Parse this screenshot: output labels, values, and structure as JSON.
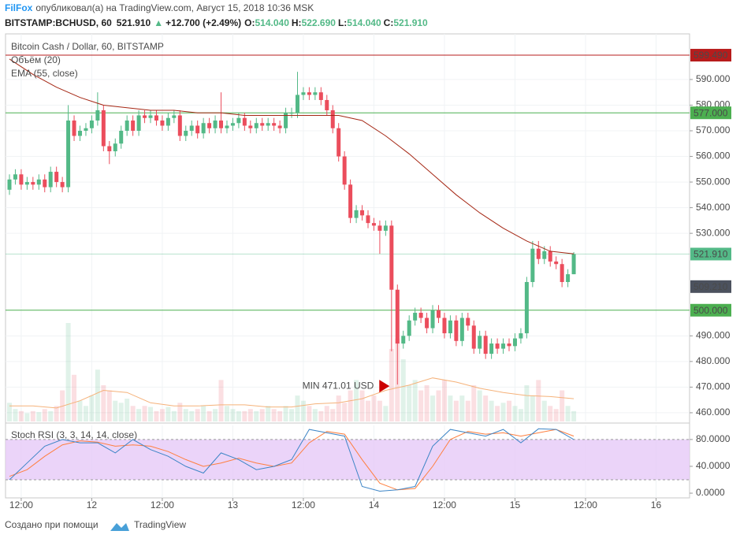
{
  "header": {
    "publisher": "FilFox",
    "published": "опубликовал(а) на TradingView.com, Август 15, 2018 10:36 MSK",
    "symbol": "BITSTAMP:BCHUSD, 60",
    "last": "521.910",
    "arrow": "▲",
    "change": "+12.700 (+2.49%)",
    "ohlc": [
      {
        "label": "O:",
        "value": "514.040"
      },
      {
        "label": "H:",
        "value": "522.690"
      },
      {
        "label": "L:",
        "value": "514.040"
      },
      {
        "label": "C:",
        "value": "521.910"
      }
    ]
  },
  "footer": {
    "text": "Создано при помощи",
    "brand": "TradingView"
  },
  "chart_data": {
    "type": "candlestick",
    "title": "Bitcoin Cash / Dollar, 60, BITSTAMP",
    "up_color": "#53b987",
    "down_color": "#eb4d5c",
    "open": [
      547,
      551,
      553,
      549,
      550,
      549,
      551,
      548,
      554,
      550,
      548,
      574,
      568,
      570,
      571,
      574,
      578,
      564,
      562,
      565,
      570,
      574,
      570,
      576,
      575,
      576,
      574,
      572,
      575,
      576,
      568,
      570,
      572,
      569,
      573,
      571,
      574,
      571,
      572,
      573,
      575,
      572,
      571,
      573,
      572,
      573,
      572,
      571,
      577,
      577,
      584,
      585,
      584,
      585,
      582,
      578,
      571,
      560,
      549,
      536,
      539,
      537,
      534,
      533,
      531,
      533,
      508,
      487,
      490,
      496,
      499,
      497,
      493,
      500,
      497,
      491,
      496,
      488,
      497,
      494,
      485,
      490,
      483,
      487,
      485,
      487,
      486,
      489,
      491,
      511,
      524,
      520,
      523,
      519,
      518,
      511,
      514.04
    ],
    "high": [
      553,
      555,
      555,
      552,
      552,
      553,
      553,
      556,
      556,
      552,
      580,
      576,
      572,
      573,
      576,
      585,
      580,
      566,
      567,
      572,
      576,
      576,
      578,
      578,
      578,
      578,
      576,
      577,
      578,
      578,
      572,
      574,
      574,
      575,
      575,
      576,
      585,
      574,
      575,
      577,
      577,
      574,
      575,
      575,
      575,
      575,
      574,
      579,
      579,
      593,
      587,
      587,
      587,
      587,
      584,
      580,
      573,
      562,
      551,
      541,
      541,
      539,
      536,
      535,
      535,
      535,
      510,
      492,
      498,
      501,
      501,
      499,
      502,
      502,
      499,
      498,
      498,
      499,
      499,
      496,
      492,
      492,
      489,
      489,
      489,
      489,
      491,
      493,
      513,
      527,
      527,
      525,
      525,
      521,
      520,
      516,
      522.69
    ],
    "low": [
      545,
      549,
      547,
      547,
      547,
      547,
      546,
      546,
      548,
      546,
      546,
      566,
      566,
      568,
      569,
      572,
      562,
      557,
      560,
      563,
      568,
      568,
      568,
      573,
      573,
      572,
      570,
      570,
      573,
      566,
      566,
      568,
      567,
      567,
      569,
      569,
      569,
      569,
      570,
      571,
      570,
      569,
      569,
      570,
      570,
      570,
      569,
      569,
      575,
      575,
      582,
      582,
      582,
      580,
      576,
      569,
      558,
      547,
      534,
      534,
      535,
      532,
      531,
      522,
      529,
      484,
      471.01,
      485,
      488,
      494,
      495,
      491,
      491,
      495,
      489,
      489,
      486,
      486,
      492,
      483,
      483,
      481,
      481,
      483,
      483,
      484,
      484,
      487,
      489,
      509,
      518,
      518,
      517,
      516,
      509,
      509,
      514.04
    ],
    "close": [
      551,
      553,
      549,
      550,
      549,
      551,
      548,
      554,
      550,
      548,
      574,
      568,
      570,
      571,
      574,
      578,
      564,
      562,
      565,
      570,
      574,
      570,
      576,
      575,
      576,
      574,
      572,
      575,
      576,
      568,
      570,
      572,
      569,
      573,
      571,
      574,
      571,
      572,
      573,
      575,
      572,
      571,
      573,
      572,
      573,
      572,
      571,
      577,
      577,
      584,
      585,
      584,
      585,
      582,
      578,
      571,
      560,
      549,
      536,
      539,
      537,
      534,
      533,
      531,
      533,
      508,
      487,
      490,
      496,
      499,
      497,
      493,
      500,
      497,
      491,
      496,
      488,
      497,
      494,
      485,
      490,
      483,
      487,
      485,
      487,
      486,
      489,
      491,
      511,
      524,
      520,
      523,
      519,
      518,
      511,
      514.04,
      521.91
    ],
    "xlim": [
      -0.67,
      115.7
    ],
    "xticks": [
      {
        "value": 2,
        "label": "12:00"
      },
      {
        "value": 14,
        "label": "12"
      },
      {
        "value": 26,
        "label": "12:00"
      },
      {
        "value": 38,
        "label": "13"
      },
      {
        "value": 50,
        "label": "12:00"
      },
      {
        "value": 62,
        "label": "14"
      },
      {
        "value": 74,
        "label": "12:00"
      },
      {
        "value": 86,
        "label": "15"
      },
      {
        "value": 98,
        "label": "12:00"
      },
      {
        "value": 110,
        "label": "16"
      }
    ],
    "ylim": [
      456.6,
      607.8
    ],
    "yticks": [
      {
        "value": 460,
        "label": "460.000"
      },
      {
        "value": 470,
        "label": "470.000"
      },
      {
        "value": 480,
        "label": "480.000"
      },
      {
        "value": 490,
        "label": "490.000"
      },
      {
        "value": 530,
        "label": "530.000"
      },
      {
        "value": 540,
        "label": "540.000"
      },
      {
        "value": 550,
        "label": "550.000"
      },
      {
        "value": 560,
        "label": "560.000"
      },
      {
        "value": 570,
        "label": "570.000"
      },
      {
        "value": 580,
        "label": "580.000"
      },
      {
        "value": 590,
        "label": "590.000"
      }
    ],
    "grid": true,
    "levels": [
      {
        "value": 599.49,
        "label": "599.490",
        "color": "#b71c1c",
        "line": true
      },
      {
        "value": 577,
        "label": "577.000",
        "color": "#4caf50",
        "line": true
      },
      {
        "value": 521.91,
        "label": "521.910",
        "color": "#53b987",
        "line": true
      },
      {
        "value": 509.21,
        "label": "509.210",
        "color": "#4c525e",
        "line": false
      },
      {
        "value": 500,
        "label": "500.000",
        "color": "#4caf50",
        "line": true
      }
    ],
    "annotation": "MIN 471.01 USD",
    "volume": {
      "name": "Объём (20)",
      "values": [
        18,
        12,
        10,
        8,
        10,
        9,
        12,
        10,
        15,
        30,
        95,
        45,
        20,
        15,
        25,
        50,
        35,
        30,
        20,
        18,
        22,
        15,
        12,
        15,
        14,
        10,
        12,
        14,
        10,
        18,
        12,
        10,
        12,
        15,
        10,
        12,
        40,
        15,
        12,
        10,
        10,
        12,
        10,
        12,
        15,
        12,
        10,
        15,
        12,
        25,
        20,
        15,
        12,
        10,
        15,
        12,
        25,
        18,
        30,
        40,
        30,
        20,
        25,
        20,
        15,
        70,
        80,
        60,
        35,
        40,
        30,
        35,
        25,
        30,
        40,
        25,
        20,
        25,
        20,
        35,
        30,
        25,
        20,
        15,
        18,
        20,
        15,
        12,
        35,
        25,
        40,
        20,
        15,
        12,
        30,
        15,
        10
      ],
      "ma": {
        "color": "#f5b27a",
        "x": [
          0,
          4,
          8,
          12,
          16,
          20,
          24,
          28,
          32,
          36,
          40,
          44,
          48,
          52,
          56,
          60,
          64,
          68,
          72,
          76,
          80,
          84,
          88,
          92,
          96
        ],
        "values": [
          15,
          15,
          13,
          20,
          30,
          28,
          18,
          15,
          15,
          16,
          16,
          14,
          14,
          17,
          18,
          22,
          30,
          35,
          42,
          38,
          32,
          28,
          25,
          24,
          22
        ]
      }
    },
    "ema": {
      "name": "EMA (55, close)",
      "color": "#a52714",
      "x": [
        0,
        4,
        8,
        12,
        16,
        20,
        24,
        28,
        32,
        36,
        40,
        44,
        48,
        52,
        56,
        60,
        64,
        68,
        72,
        76,
        80,
        84,
        88,
        92,
        96
      ],
      "values": [
        598,
        592,
        587,
        583,
        580,
        579,
        578,
        578,
        577,
        577,
        576,
        576,
        576,
        576,
        576,
        574,
        568,
        561,
        553,
        545,
        538,
        532,
        527,
        523,
        522
      ]
    },
    "stoch": {
      "name": "Stoch RSI (3, 3, 14, 14, close)",
      "ylim": [
        -7,
        101
      ],
      "yticks": [
        {
          "value": 0,
          "label": "0.0000"
        },
        {
          "value": 40,
          "label": "40.0000"
        },
        {
          "value": 80,
          "label": "80.0000"
        }
      ],
      "bands": [
        20,
        80
      ],
      "band_color": "#e6c9f7",
      "k": {
        "color": "#3d85c6",
        "x": [
          0,
          3,
          6,
          9,
          12,
          15,
          18,
          21,
          24,
          27,
          30,
          33,
          36,
          39,
          42,
          45,
          48,
          51,
          54,
          57,
          60,
          63,
          66,
          69,
          72,
          75,
          78,
          81,
          84,
          87,
          90,
          93,
          96
        ],
        "values": [
          20,
          45,
          70,
          80,
          75,
          75,
          60,
          80,
          65,
          55,
          40,
          30,
          60,
          50,
          35,
          40,
          50,
          95,
          90,
          85,
          10,
          3,
          5,
          10,
          70,
          95,
          90,
          85,
          95,
          75,
          96,
          95,
          80
        ]
      },
      "d": {
        "color": "#ff7f3f",
        "x": [
          0,
          3,
          6,
          9,
          12,
          15,
          18,
          21,
          24,
          27,
          30,
          33,
          36,
          39,
          42,
          45,
          48,
          51,
          54,
          57,
          60,
          63,
          66,
          69,
          72,
          75,
          78,
          81,
          84,
          87,
          90,
          93,
          96
        ],
        "values": [
          25,
          35,
          55,
          72,
          78,
          76,
          70,
          72,
          70,
          62,
          50,
          40,
          45,
          52,
          45,
          40,
          45,
          75,
          92,
          88,
          50,
          15,
          5,
          7,
          40,
          80,
          92,
          88,
          90,
          85,
          90,
          95,
          85
        ]
      }
    }
  }
}
